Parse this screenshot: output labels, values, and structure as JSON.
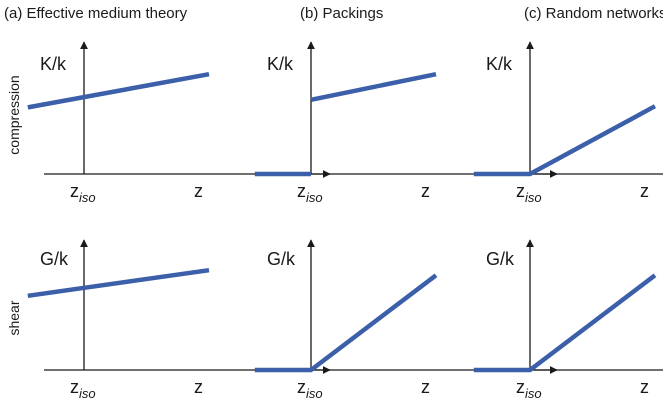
{
  "panel_titles": [
    "(a) Effective medium theory",
    "(b) Packings",
    "(c) Random networks"
  ],
  "row_labels": [
    "compression",
    "shear"
  ],
  "y_axis_labels": [
    "K/k",
    "G/k"
  ],
  "x_axis_label": "z",
  "x_marker": {
    "main": "z",
    "subscript": "iso"
  },
  "colors": {
    "curve": "#3c5fa9",
    "axis": "#1a1a1a",
    "text": "#1a1a1a"
  },
  "chart_data": [
    {
      "type": "line",
      "panel": "(a) Effective medium theory",
      "row": "compression",
      "ylabel": "K/k",
      "xlabel": "z",
      "series": [
        {
          "x": [
            -0.45,
            1
          ],
          "y": [
            0.52,
            0.78
          ]
        }
      ]
    },
    {
      "type": "line",
      "panel": "(b) Packings",
      "row": "compression",
      "ylabel": "K/k",
      "xlabel": "z",
      "series": [
        {
          "x": [
            -0.45,
            0
          ],
          "y": [
            0,
            0
          ]
        },
        {
          "x": [
            0,
            1
          ],
          "y": [
            0.58,
            0.78
          ]
        }
      ]
    },
    {
      "type": "line",
      "panel": "(c) Random networks",
      "row": "compression",
      "ylabel": "K/k",
      "xlabel": "z",
      "series": [
        {
          "x": [
            -0.45,
            0,
            1
          ],
          "y": [
            0,
            0,
            0.53
          ]
        }
      ]
    },
    {
      "type": "line",
      "panel": "(a) Effective medium theory",
      "row": "shear",
      "ylabel": "G/k",
      "xlabel": "z",
      "series": [
        {
          "x": [
            -0.45,
            1
          ],
          "y": [
            0.58,
            0.78
          ]
        }
      ]
    },
    {
      "type": "line",
      "panel": "(b) Packings",
      "row": "shear",
      "ylabel": "G/k",
      "xlabel": "z",
      "series": [
        {
          "x": [
            -0.45,
            0,
            1
          ],
          "y": [
            0,
            0,
            0.74
          ]
        }
      ]
    },
    {
      "type": "line",
      "panel": "(c) Random networks",
      "row": "shear",
      "ylabel": "G/k",
      "xlabel": "z",
      "series": [
        {
          "x": [
            -0.45,
            0,
            1
          ],
          "y": [
            0,
            0,
            0.74
          ]
        }
      ]
    }
  ]
}
